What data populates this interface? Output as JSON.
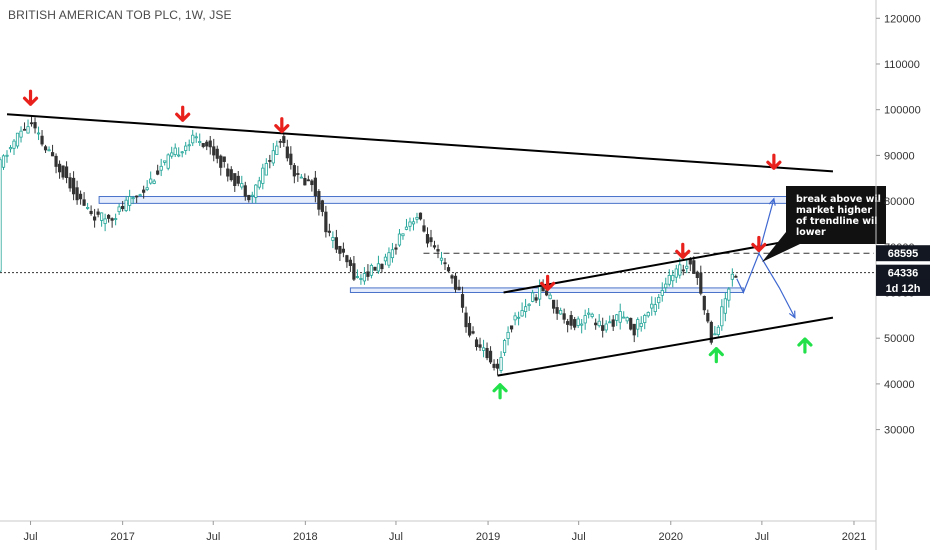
{
  "header": {
    "title": "BRITISH AMERICAN TOB PLC, 1W, JSE"
  },
  "colors": {
    "bull": "#26a69a",
    "bear": "#333333",
    "arrow_red": "#e8211d",
    "arrow_green": "#22e04a",
    "zone_border": "#4a72c9",
    "zone_fill": "#dbe6fb",
    "projection": "#3f68d0",
    "trendline": "#000000"
  },
  "chart_data": {
    "type": "candlestick",
    "title": "BRITISH AMERICAN TOB PLC, 1W, JSE",
    "ylim": [
      10000,
      124000
    ],
    "y_ticks": [
      30000,
      40000,
      50000,
      60000,
      70000,
      80000,
      90000,
      100000,
      110000,
      120000
    ],
    "x_range": [
      "2016-05-01",
      "2021-02-10"
    ],
    "x_ticks": [
      {
        "date": "2016-07-01",
        "label": "Jul"
      },
      {
        "date": "2017-01-01",
        "label": "2017"
      },
      {
        "date": "2017-07-01",
        "label": "Jul"
      },
      {
        "date": "2018-01-01",
        "label": "2018"
      },
      {
        "date": "2018-07-01",
        "label": "Jul"
      },
      {
        "date": "2019-01-01",
        "label": "2019"
      },
      {
        "date": "2019-07-01",
        "label": "Jul"
      },
      {
        "date": "2020-01-01",
        "label": "2020"
      },
      {
        "date": "2020-07-01",
        "label": "Jul"
      },
      {
        "date": "2021-01-01",
        "label": "2021"
      }
    ],
    "price_path": [
      [
        "2016-05-01",
        88000
      ],
      [
        "2016-06-10",
        95000
      ],
      [
        "2016-07-01",
        97000
      ],
      [
        "2016-08-01",
        91000
      ],
      [
        "2016-09-01",
        87000
      ],
      [
        "2016-10-15",
        79000
      ],
      [
        "2016-11-15",
        76000
      ],
      [
        "2016-12-15",
        77000
      ],
      [
        "2017-01-15",
        80000
      ],
      [
        "2017-02-15",
        83000
      ],
      [
        "2017-03-15",
        87000
      ],
      [
        "2017-05-01",
        92000
      ],
      [
        "2017-06-01",
        94000
      ],
      [
        "2017-07-01",
        91000
      ],
      [
        "2017-08-01",
        86000
      ],
      [
        "2017-09-15",
        81000
      ],
      [
        "2017-10-15",
        88000
      ],
      [
        "2017-11-15",
        94000
      ],
      [
        "2017-12-15",
        85000
      ],
      [
        "2018-01-15",
        84000
      ],
      [
        "2018-02-15",
        73000
      ],
      [
        "2018-03-15",
        68000
      ],
      [
        "2018-04-15",
        63000
      ],
      [
        "2018-05-15",
        65000
      ],
      [
        "2018-06-15",
        67000
      ],
      [
        "2018-07-15",
        74000
      ],
      [
        "2018-08-10",
        77000
      ],
      [
        "2018-09-10",
        70000
      ],
      [
        "2018-10-10",
        65000
      ],
      [
        "2018-11-01",
        61000
      ],
      [
        "2018-11-20",
        52000
      ],
      [
        "2018-12-15",
        48000
      ],
      [
        "2019-01-20",
        43500
      ],
      [
        "2019-02-10",
        52000
      ],
      [
        "2019-03-15",
        57000
      ],
      [
        "2019-04-20",
        61000
      ],
      [
        "2019-05-20",
        56000
      ],
      [
        "2019-06-20",
        53000
      ],
      [
        "2019-07-20",
        55000
      ],
      [
        "2019-08-20",
        52000
      ],
      [
        "2019-09-20",
        55000
      ],
      [
        "2019-10-20",
        52000
      ],
      [
        "2019-11-20",
        56000
      ],
      [
        "2019-12-20",
        62000
      ],
      [
        "2020-01-20",
        65000
      ],
      [
        "2020-02-10",
        67000
      ],
      [
        "2020-02-25",
        63000
      ],
      [
        "2020-03-10",
        55000
      ],
      [
        "2020-03-24",
        49500
      ],
      [
        "2020-04-10",
        55000
      ],
      [
        "2020-04-30",
        63500
      ],
      [
        "2020-05-10",
        64336
      ]
    ],
    "resistance_line": {
      "start": [
        "2016-05-15",
        99000
      ],
      "end": [
        "2020-11-20",
        86500
      ]
    },
    "channel_upper": {
      "start": [
        "2019-02-01",
        60000
      ],
      "end": [
        "2020-11-20",
        73000
      ]
    },
    "channel_lower": {
      "start": [
        "2019-01-20",
        41800
      ],
      "end": [
        "2020-11-20",
        54500
      ]
    },
    "zones": [
      {
        "start": "2016-11-15",
        "end": "2020-11-01",
        "low": 79500,
        "high": 81000
      },
      {
        "start": "2018-04-01",
        "end": "2020-05-25",
        "low": 60000,
        "high": 61000
      }
    ],
    "dashed_levels": [
      {
        "value": 68595,
        "start": "2018-08-25",
        "style": "dashed"
      },
      {
        "value": 64336,
        "start": "2016-05-01",
        "style": "dotted"
      }
    ],
    "price_labels": [
      {
        "value": 68595,
        "text": "68595",
        "style": "dark"
      },
      {
        "value": 64336,
        "text": "64336",
        "style": "dark"
      },
      {
        "value": 61000,
        "text": "1d 12h",
        "style": "dark"
      }
    ],
    "red_arrows": [
      [
        "2016-07-01",
        102500
      ],
      [
        "2017-05-01",
        99000
      ],
      [
        "2017-11-15",
        96500
      ],
      [
        "2020-07-25",
        88500
      ],
      [
        "2019-04-30",
        62000
      ],
      [
        "2020-01-25",
        69000
      ],
      [
        "2020-06-25",
        70500
      ]
    ],
    "green_arrows": [
      [
        "2019-01-25",
        38500
      ],
      [
        "2020-04-01",
        46400
      ],
      [
        "2020-09-25",
        48500
      ]
    ],
    "projection_up": [
      [
        "2020-05-12",
        63000
      ],
      [
        "2020-05-25",
        60000
      ],
      [
        "2020-06-25",
        68500
      ],
      [
        "2020-07-25",
        80500
      ]
    ],
    "projection_down": [
      [
        "2020-06-25",
        68500
      ],
      [
        "2020-08-05",
        61000
      ],
      [
        "2020-09-05",
        54500
      ]
    ],
    "annotation": {
      "lines": [
        "break above wil",
        "market higher",
        "of trendline wil",
        "lower"
      ]
    }
  }
}
